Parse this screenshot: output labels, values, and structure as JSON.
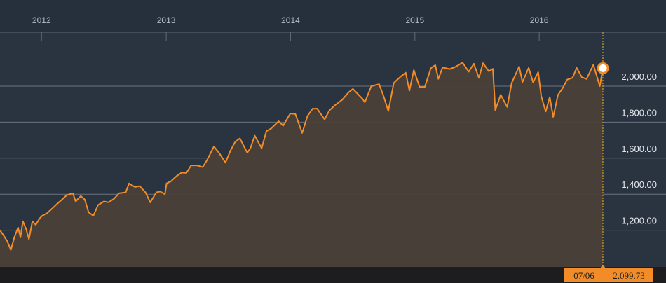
{
  "chart_data": {
    "type": "area",
    "x_axis": {
      "tick_labels": [
        "2012",
        "2013",
        "2014",
        "2015",
        "2016"
      ],
      "range": [
        "2011-09-01",
        "2016-07-06"
      ]
    },
    "y_axis": {
      "tick_labels": [
        "1,200.00",
        "1,400.00",
        "1,600.00",
        "1,800.00",
        "2,000.00"
      ],
      "ticks": [
        1200,
        1400,
        1600,
        1800,
        2000
      ],
      "range": [
        1000,
        2300
      ],
      "position": "right"
    },
    "grid": true,
    "series": [
      {
        "color": "#f28c28",
        "fill": "#4a4039",
        "points": [
          [
            "2011-09-01",
            1200
          ],
          [
            "2011-09-12",
            1170
          ],
          [
            "2011-09-22",
            1140
          ],
          [
            "2011-10-03",
            1090
          ],
          [
            "2011-10-13",
            1160
          ],
          [
            "2011-10-24",
            1215
          ],
          [
            "2011-10-31",
            1160
          ],
          [
            "2011-11-07",
            1250
          ],
          [
            "2011-11-17",
            1205
          ],
          [
            "2011-11-25",
            1150
          ],
          [
            "2011-12-05",
            1250
          ],
          [
            "2011-12-15",
            1230
          ],
          [
            "2011-12-26",
            1265
          ],
          [
            "2012-01-03",
            1280
          ],
          [
            "2012-01-17",
            1295
          ],
          [
            "2012-02-01",
            1320
          ],
          [
            "2012-02-15",
            1345
          ],
          [
            "2012-03-01",
            1370
          ],
          [
            "2012-03-15",
            1395
          ],
          [
            "2012-04-02",
            1405
          ],
          [
            "2012-04-10",
            1360
          ],
          [
            "2012-04-25",
            1390
          ],
          [
            "2012-05-07",
            1370
          ],
          [
            "2012-05-18",
            1300
          ],
          [
            "2012-06-01",
            1280
          ],
          [
            "2012-06-15",
            1340
          ],
          [
            "2012-07-02",
            1360
          ],
          [
            "2012-07-16",
            1355
          ],
          [
            "2012-08-01",
            1375
          ],
          [
            "2012-08-15",
            1405
          ],
          [
            "2012-09-04",
            1410
          ],
          [
            "2012-09-14",
            1460
          ],
          [
            "2012-10-01",
            1440
          ],
          [
            "2012-10-15",
            1445
          ],
          [
            "2012-11-01",
            1410
          ],
          [
            "2012-11-15",
            1355
          ],
          [
            "2012-12-03",
            1410
          ],
          [
            "2012-12-14",
            1415
          ],
          [
            "2012-12-28",
            1400
          ],
          [
            "2013-01-02",
            1460
          ],
          [
            "2013-01-15",
            1472
          ],
          [
            "2013-01-31",
            1500
          ],
          [
            "2013-02-15",
            1520
          ],
          [
            "2013-03-01",
            1518
          ],
          [
            "2013-03-15",
            1560
          ],
          [
            "2013-04-01",
            1560
          ],
          [
            "2013-04-18",
            1550
          ],
          [
            "2013-05-01",
            1590
          ],
          [
            "2013-05-21",
            1665
          ],
          [
            "2013-06-05",
            1630
          ],
          [
            "2013-06-24",
            1575
          ],
          [
            "2013-07-08",
            1640
          ],
          [
            "2013-07-22",
            1690
          ],
          [
            "2013-08-05",
            1710
          ],
          [
            "2013-08-27",
            1630
          ],
          [
            "2013-09-05",
            1655
          ],
          [
            "2013-09-18",
            1725
          ],
          [
            "2013-10-08",
            1655
          ],
          [
            "2013-10-22",
            1750
          ],
          [
            "2013-11-05",
            1765
          ],
          [
            "2013-11-27",
            1805
          ],
          [
            "2013-12-10",
            1780
          ],
          [
            "2013-12-31",
            1848
          ],
          [
            "2014-01-15",
            1845
          ],
          [
            "2014-02-04",
            1740
          ],
          [
            "2014-02-20",
            1835
          ],
          [
            "2014-03-07",
            1875
          ],
          [
            "2014-03-20",
            1875
          ],
          [
            "2014-04-11",
            1815
          ],
          [
            "2014-04-25",
            1865
          ],
          [
            "2014-05-12",
            1895
          ],
          [
            "2014-06-02",
            1925
          ],
          [
            "2014-06-20",
            1965
          ],
          [
            "2014-07-03",
            1985
          ],
          [
            "2014-07-31",
            1930
          ],
          [
            "2014-08-07",
            1910
          ],
          [
            "2014-08-26",
            2000
          ],
          [
            "2014-09-18",
            2011
          ],
          [
            "2014-10-01",
            1945
          ],
          [
            "2014-10-15",
            1862
          ],
          [
            "2014-10-31",
            2018
          ],
          [
            "2014-11-20",
            2053
          ],
          [
            "2014-12-05",
            2075
          ],
          [
            "2014-12-16",
            1975
          ],
          [
            "2014-12-29",
            2090
          ],
          [
            "2015-01-15",
            1995
          ],
          [
            "2015-01-30",
            1995
          ],
          [
            "2015-02-17",
            2100
          ],
          [
            "2015-03-02",
            2117
          ],
          [
            "2015-03-11",
            2040
          ],
          [
            "2015-03-23",
            2104
          ],
          [
            "2015-04-14",
            2095
          ],
          [
            "2015-05-01",
            2108
          ],
          [
            "2015-05-21",
            2131
          ],
          [
            "2015-06-08",
            2080
          ],
          [
            "2015-06-23",
            2125
          ],
          [
            "2015-07-08",
            2046
          ],
          [
            "2015-07-20",
            2128
          ],
          [
            "2015-08-06",
            2083
          ],
          [
            "2015-08-18",
            2096
          ],
          [
            "2015-08-25",
            1867
          ],
          [
            "2015-09-10",
            1952
          ],
          [
            "2015-09-29",
            1884
          ],
          [
            "2015-10-12",
            2017
          ],
          [
            "2015-11-03",
            2109
          ],
          [
            "2015-11-13",
            2023
          ],
          [
            "2015-12-01",
            2102
          ],
          [
            "2015-12-14",
            2021
          ],
          [
            "2015-12-29",
            2078
          ],
          [
            "2016-01-07",
            1943
          ],
          [
            "2016-01-20",
            1859
          ],
          [
            "2016-02-01",
            1939
          ],
          [
            "2016-02-11",
            1829
          ],
          [
            "2016-02-25",
            1951
          ],
          [
            "2016-03-10",
            1990
          ],
          [
            "2016-03-23",
            2036
          ],
          [
            "2016-04-08",
            2047
          ],
          [
            "2016-04-20",
            2102
          ],
          [
            "2016-05-05",
            2050
          ],
          [
            "2016-05-19",
            2040
          ],
          [
            "2016-06-08",
            2119
          ],
          [
            "2016-06-27",
            2000
          ],
          [
            "2016-07-06",
            2099.73
          ]
        ]
      }
    ],
    "annotations": {
      "last_point_date": "07/06",
      "last_point_value": "2,099.73"
    }
  },
  "colors": {
    "background": "#26303c",
    "plot_area": "#2a3441",
    "line": "#f28c28",
    "area_fill": "#4a4039",
    "grid": "#6b737d",
    "axis_label": "#b4bcc6",
    "cursor": "#e8b620",
    "badge": "#f28c28"
  }
}
